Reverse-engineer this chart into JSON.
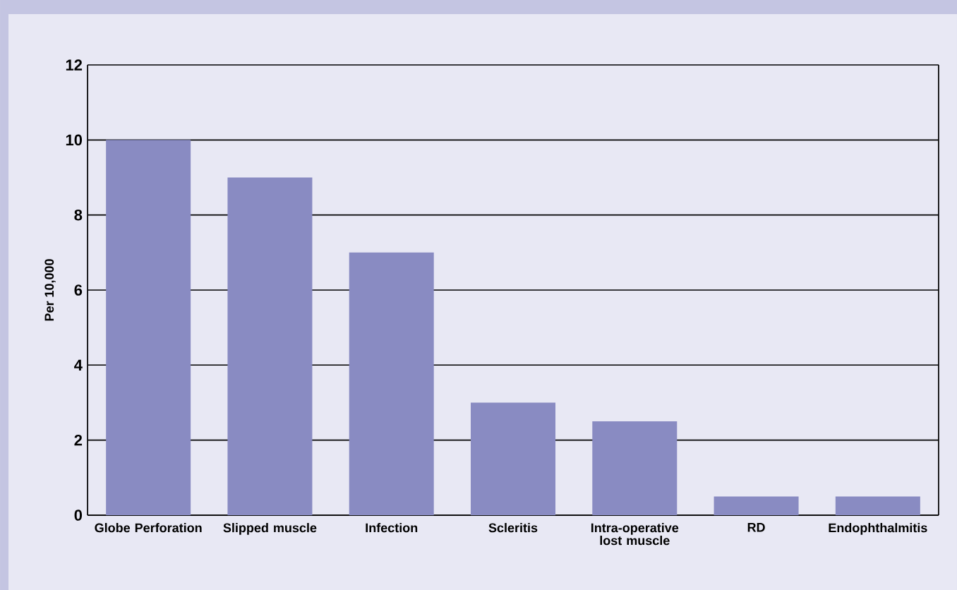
{
  "chart_data": {
    "type": "bar",
    "ylabel": "Per 10,000",
    "categories": [
      "Globe Perforation",
      "Slipped muscle",
      "Infection",
      "Scleritis",
      "Intra-operative lost muscle",
      "RD",
      "Endophthalmitis"
    ],
    "values": [
      10,
      9,
      7,
      3,
      2.5,
      0.5,
      0.5
    ],
    "color": "#898bc2",
    "ylim": [
      0,
      12
    ],
    "yticks": [
      0,
      2,
      4,
      6,
      8,
      10,
      12
    ],
    "grid": "y"
  }
}
